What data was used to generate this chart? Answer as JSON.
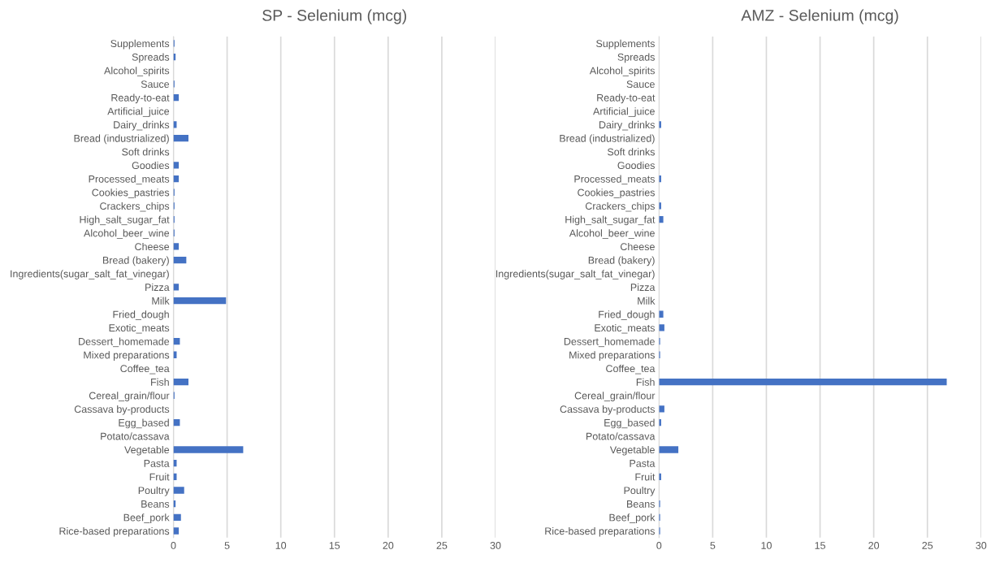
{
  "chart_data": [
    {
      "type": "bar",
      "orientation": "horizontal",
      "title": "SP - Selenium (mcg)",
      "color": "#4472c4",
      "xlim": [
        0,
        30
      ],
      "xticks": [
        0,
        5,
        10,
        15,
        20,
        25,
        30
      ],
      "grid": "x",
      "legend": false,
      "categories": [
        "Supplements",
        "Spreads",
        "Alcohol_spirits",
        "Sauce",
        "Ready-to-eat",
        "Artificial_juice",
        "Dairy_drinks",
        "Bread (industrialized)",
        "Soft drinks",
        "Goodies",
        "Processed_meats",
        "Cookies_pastries",
        "Crackers_chips",
        "High_salt_sugar_fat",
        "Alcohol_beer_wine",
        "Cheese",
        "Bread (bakery)",
        "Ingredients(sugar_salt_fat_vinegar)",
        "Pizza",
        "Milk",
        "Fried_dough",
        "Exotic_meats",
        "Dessert_homemade",
        "Mixed preparations",
        "Coffee_tea",
        "Fish",
        "Cereal_grain/flour",
        "Cassava by-products",
        "Egg_based",
        "Potato/cassava",
        "Vegetable",
        "Pasta",
        "Fruit",
        "Poultry",
        "Beans",
        "Beef_pork",
        "Rice-based preparations"
      ],
      "values": [
        0.1,
        0.2,
        0,
        0.1,
        0.5,
        0,
        0.3,
        1.4,
        0,
        0.5,
        0.5,
        0.1,
        0.1,
        0.1,
        0.1,
        0.5,
        1.2,
        0,
        0.5,
        4.9,
        0,
        0,
        0.6,
        0.3,
        0,
        1.4,
        0.1,
        0,
        0.6,
        0,
        6.5,
        0.3,
        0.3,
        1.0,
        0.2,
        0.7,
        0.5
      ]
    },
    {
      "type": "bar",
      "orientation": "horizontal",
      "title": "AMZ - Selenium (mcg)",
      "color": "#4472c4",
      "xlim": [
        0,
        30
      ],
      "xticks": [
        0,
        5,
        10,
        15,
        20,
        25,
        30
      ],
      "grid": "x",
      "legend": false,
      "categories": [
        "Supplements",
        "Spreads",
        "Alcohol_spirits",
        "Sauce",
        "Ready-to-eat",
        "Artificial_juice",
        "Dairy_drinks",
        "Bread (industrialized)",
        "Soft drinks",
        "Goodies",
        "Processed_meats",
        "Cookies_pastries",
        "Crackers_chips",
        "High_salt_sugar_fat",
        "Alcohol_beer_wine",
        "Cheese",
        "Bread (bakery)",
        "Ingredients(sugar_salt_fat_vinegar)",
        "Pizza",
        "Milk",
        "Fried_dough",
        "Exotic_meats",
        "Dessert_homemade",
        "Mixed preparations",
        "Coffee_tea",
        "Fish",
        "Cereal_grain/flour",
        "Cassava by-products",
        "Egg_based",
        "Potato/cassava",
        "Vegetable",
        "Pasta",
        "Fruit",
        "Poultry",
        "Beans",
        "Beef_pork",
        "Rice-based preparations"
      ],
      "values": [
        0,
        0,
        0,
        0,
        0,
        0,
        0.2,
        0,
        0,
        0,
        0.2,
        0,
        0.2,
        0.4,
        0,
        0,
        0,
        0,
        0,
        0,
        0.4,
        0.5,
        0.1,
        0.1,
        0,
        26.8,
        0,
        0.5,
        0.2,
        0,
        1.8,
        0,
        0.2,
        0,
        0.1,
        0.1,
        0.1
      ]
    }
  ]
}
